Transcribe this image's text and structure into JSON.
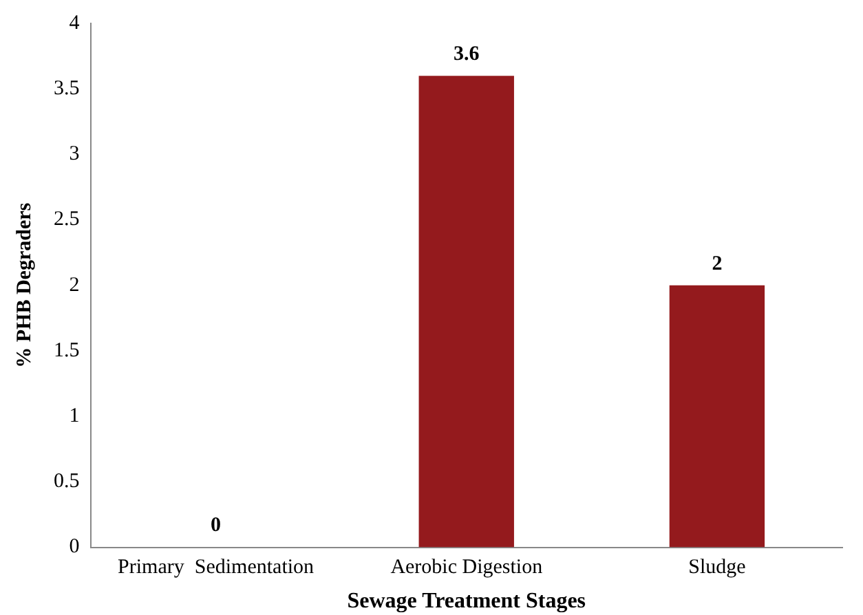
{
  "chart_data": {
    "type": "bar",
    "xlabel": "Sewage Treatment Stages",
    "ylabel": "% PHB Degraders",
    "categories": [
      "Primary  Sedimentation",
      "Aerobic Digestion",
      "Sludge"
    ],
    "values": [
      0,
      3.6,
      2
    ],
    "color": "#941a1d",
    "data_labels": true,
    "ylim": [
      0,
      4
    ],
    "yticks": [
      0,
      0.5,
      1,
      1.5,
      2,
      2.5,
      3,
      3.5,
      4
    ],
    "grid": false,
    "legend": false
  }
}
